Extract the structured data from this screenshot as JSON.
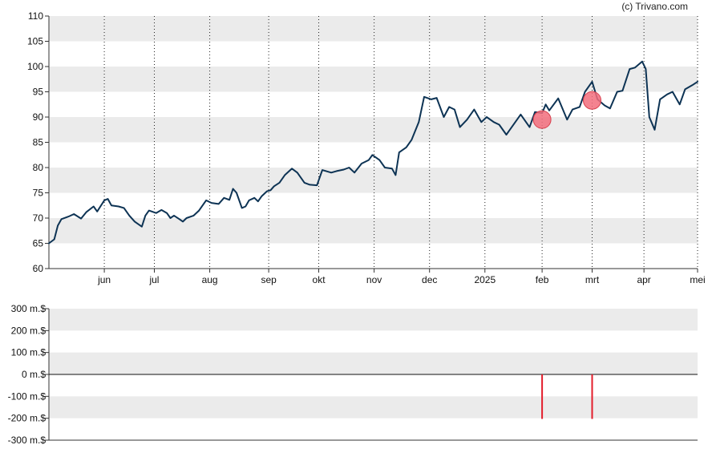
{
  "credit": "(c) Trivano.com",
  "colors": {
    "line": "#0d3354",
    "band": "#ebebeb",
    "marker_fill": "#f26d7d",
    "marker_stroke": "#d9414f",
    "volume_bar": "#e31d2b"
  },
  "chart_data": [
    {
      "type": "line",
      "title": "",
      "xlabel": "",
      "ylabel": "",
      "ylim": [
        60,
        110
      ],
      "y_ticks": [
        60,
        65,
        70,
        75,
        80,
        85,
        90,
        95,
        100,
        105,
        110
      ],
      "x_range": [
        "2024-05-03",
        "2025-05-01"
      ],
      "x_ticks": [
        {
          "date": "2024-06-03",
          "label": "jun"
        },
        {
          "date": "2024-07-01",
          "label": "jul"
        },
        {
          "date": "2024-08-01",
          "label": "aug"
        },
        {
          "date": "2024-09-03",
          "label": "sep"
        },
        {
          "date": "2024-10-01",
          "label": "okt"
        },
        {
          "date": "2024-11-01",
          "label": "nov"
        },
        {
          "date": "2024-12-02",
          "label": "dec"
        },
        {
          "date": "2025-01-02",
          "label": "2025"
        },
        {
          "date": "2025-02-03",
          "label": "feb"
        },
        {
          "date": "2025-03-03",
          "label": "mrt"
        },
        {
          "date": "2025-04-01",
          "label": "apr"
        },
        {
          "date": "2025-05-01",
          "label": "mei"
        }
      ],
      "grid": "horizontal alternating bands, vertical dotted lines at month starts",
      "series": [
        {
          "points": [
            [
              "2024-05-03",
              65.0
            ],
            [
              "2024-05-06",
              65.8
            ],
            [
              "2024-05-08",
              68.5
            ],
            [
              "2024-05-10",
              69.8
            ],
            [
              "2024-05-14",
              70.3
            ],
            [
              "2024-05-17",
              70.8
            ],
            [
              "2024-05-21",
              69.9
            ],
            [
              "2024-05-24",
              71.2
            ],
            [
              "2024-05-28",
              72.3
            ],
            [
              "2024-05-30",
              71.3
            ],
            [
              "2024-06-03",
              73.5
            ],
            [
              "2024-06-05",
              73.8
            ],
            [
              "2024-06-07",
              72.5
            ],
            [
              "2024-06-11",
              72.3
            ],
            [
              "2024-06-14",
              72.0
            ],
            [
              "2024-06-17",
              70.5
            ],
            [
              "2024-06-20",
              69.3
            ],
            [
              "2024-06-24",
              68.3
            ],
            [
              "2024-06-26",
              70.5
            ],
            [
              "2024-06-28",
              71.5
            ],
            [
              "2024-07-02",
              71.0
            ],
            [
              "2024-07-05",
              71.6
            ],
            [
              "2024-07-08",
              71.0
            ],
            [
              "2024-07-10",
              70.0
            ],
            [
              "2024-07-12",
              70.5
            ],
            [
              "2024-07-15",
              69.8
            ],
            [
              "2024-07-17",
              69.3
            ],
            [
              "2024-07-19",
              70.0
            ],
            [
              "2024-07-23",
              70.5
            ],
            [
              "2024-07-26",
              71.5
            ],
            [
              "2024-07-30",
              73.5
            ],
            [
              "2024-08-02",
              73.0
            ],
            [
              "2024-08-06",
              72.8
            ],
            [
              "2024-08-09",
              74.0
            ],
            [
              "2024-08-12",
              73.6
            ],
            [
              "2024-08-14",
              75.8
            ],
            [
              "2024-08-16",
              75.0
            ],
            [
              "2024-08-19",
              72.0
            ],
            [
              "2024-08-21",
              72.3
            ],
            [
              "2024-08-23",
              73.5
            ],
            [
              "2024-08-26",
              74.0
            ],
            [
              "2024-08-28",
              73.3
            ],
            [
              "2024-08-30",
              74.3
            ],
            [
              "2024-09-02",
              75.3
            ],
            [
              "2024-09-04",
              75.5
            ],
            [
              "2024-09-06",
              76.3
            ],
            [
              "2024-09-09",
              77.0
            ],
            [
              "2024-09-12",
              78.5
            ],
            [
              "2024-09-16",
              79.8
            ],
            [
              "2024-09-19",
              79.0
            ],
            [
              "2024-09-23",
              77.0
            ],
            [
              "2024-09-26",
              76.6
            ],
            [
              "2024-09-30",
              76.5
            ],
            [
              "2024-10-03",
              79.5
            ],
            [
              "2024-10-08",
              79.0
            ],
            [
              "2024-10-11",
              79.3
            ],
            [
              "2024-10-15",
              79.6
            ],
            [
              "2024-10-18",
              80.0
            ],
            [
              "2024-10-21",
              79.0
            ],
            [
              "2024-10-25",
              80.8
            ],
            [
              "2024-10-29",
              81.5
            ],
            [
              "2024-10-31",
              82.5
            ],
            [
              "2024-11-04",
              81.5
            ],
            [
              "2024-11-07",
              80.0
            ],
            [
              "2024-11-11",
              79.8
            ],
            [
              "2024-11-13",
              78.5
            ],
            [
              "2024-11-15",
              83.0
            ],
            [
              "2024-11-19",
              84.0
            ],
            [
              "2024-11-22",
              85.5
            ],
            [
              "2024-11-26",
              89.0
            ],
            [
              "2024-11-29",
              94.0
            ],
            [
              "2024-12-03",
              93.5
            ],
            [
              "2024-12-06",
              93.8
            ],
            [
              "2024-12-10",
              90.0
            ],
            [
              "2024-12-13",
              92.0
            ],
            [
              "2024-12-16",
              91.5
            ],
            [
              "2024-12-19",
              88.0
            ],
            [
              "2024-12-23",
              89.5
            ],
            [
              "2024-12-27",
              91.5
            ],
            [
              "2024-12-31",
              89.0
            ],
            [
              "2025-01-03",
              90.0
            ],
            [
              "2025-01-07",
              89.0
            ],
            [
              "2025-01-10",
              88.5
            ],
            [
              "2025-01-14",
              86.5
            ],
            [
              "2025-01-17",
              88.0
            ],
            [
              "2025-01-22",
              90.5
            ],
            [
              "2025-01-27",
              88.0
            ],
            [
              "2025-01-30",
              91.0
            ],
            [
              "2025-02-03",
              90.8
            ],
            [
              "2025-02-05",
              92.5
            ],
            [
              "2025-02-07",
              91.3
            ],
            [
              "2025-02-12",
              93.7
            ],
            [
              "2025-02-17",
              89.5
            ],
            [
              "2025-02-20",
              91.5
            ],
            [
              "2025-02-24",
              92.0
            ],
            [
              "2025-02-27",
              95.0
            ],
            [
              "2025-03-03",
              97.0
            ],
            [
              "2025-03-06",
              93.5
            ],
            [
              "2025-03-10",
              92.3
            ],
            [
              "2025-03-13",
              91.7
            ],
            [
              "2025-03-17",
              95.0
            ],
            [
              "2025-03-20",
              95.2
            ],
            [
              "2025-03-24",
              99.5
            ],
            [
              "2025-03-27",
              99.8
            ],
            [
              "2025-03-31",
              101.0
            ],
            [
              "2025-04-02",
              99.5
            ],
            [
              "2025-04-04",
              90.0
            ],
            [
              "2025-04-07",
              87.5
            ],
            [
              "2025-04-10",
              93.5
            ],
            [
              "2025-04-14",
              94.5
            ],
            [
              "2025-04-17",
              95.0
            ],
            [
              "2025-04-21",
              92.5
            ],
            [
              "2025-04-24",
              95.5
            ],
            [
              "2025-04-28",
              96.3
            ],
            [
              "2025-05-01",
              97.0
            ]
          ]
        }
      ],
      "annotations": [
        {
          "type": "marker",
          "date": "2025-02-03",
          "value": 89.5
        },
        {
          "type": "marker",
          "date": "2025-03-03",
          "value": 93.3
        }
      ]
    },
    {
      "type": "bar",
      "title": "",
      "xlabel": "",
      "ylabel": "",
      "ylim": [
        -300,
        300
      ],
      "y_ticks": [
        {
          "value": 300,
          "label": "300 m.$"
        },
        {
          "value": 200,
          "label": "200 m.$"
        },
        {
          "value": 100,
          "label": "100 m.$"
        },
        {
          "value": 0,
          "label": "0 m.$"
        },
        {
          "value": -100,
          "label": "-100 m.$"
        },
        {
          "value": -200,
          "label": "-200 m.$"
        },
        {
          "value": -300,
          "label": "-300 m.$"
        }
      ],
      "bars": [
        {
          "date": "2025-02-03",
          "value": -203
        },
        {
          "date": "2025-03-03",
          "value": -203
        }
      ]
    }
  ]
}
